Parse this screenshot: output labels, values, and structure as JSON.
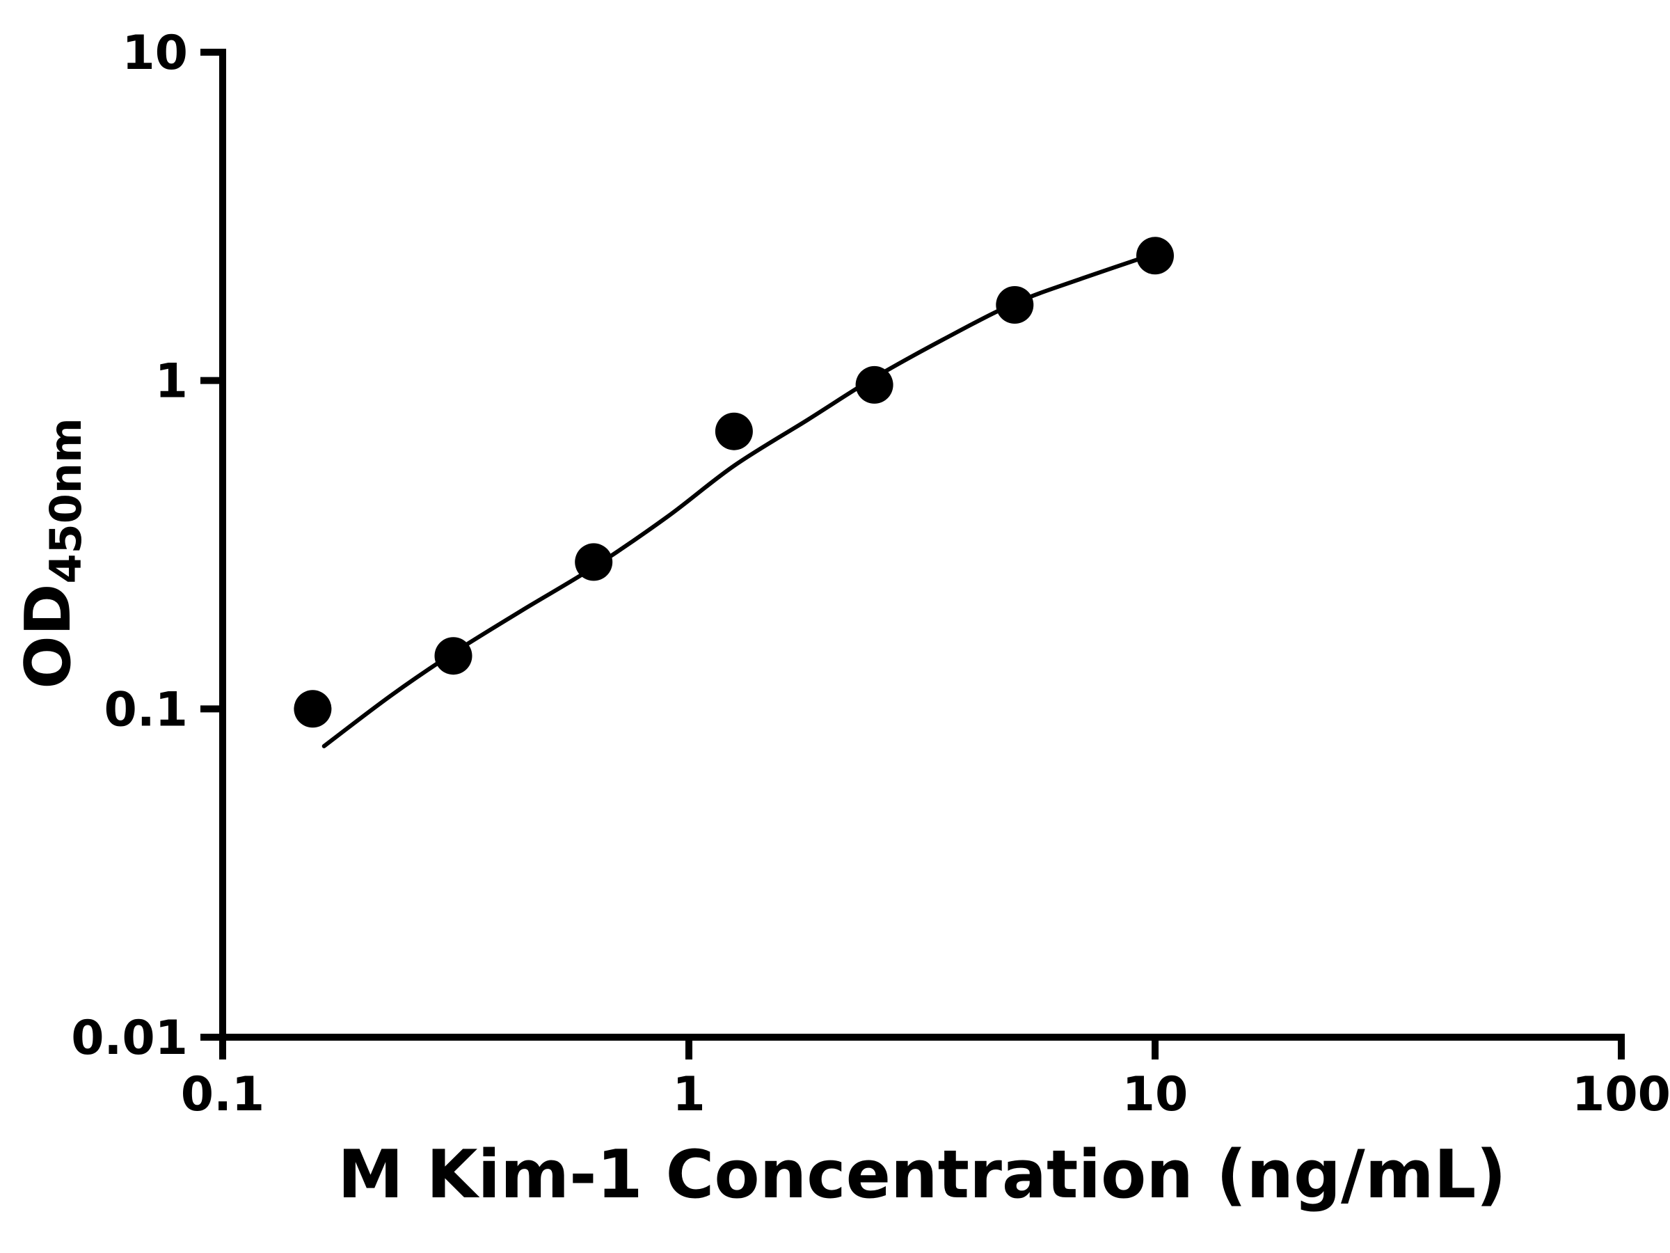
{
  "chart_data": {
    "type": "scatter",
    "title": "",
    "xlabel": "M Kim-1 Concentration (ng/mL)",
    "ylabel_main": "OD",
    "ylabel_sub": "450nm",
    "x_scale": "log",
    "y_scale": "log",
    "xlim": [
      0.1,
      100
    ],
    "ylim": [
      0.01,
      10
    ],
    "x_ticks": [
      0.1,
      1,
      10,
      100
    ],
    "x_tick_labels": [
      "0.1",
      "1",
      "10",
      "100"
    ],
    "y_ticks": [
      0.01,
      0.1,
      1,
      10
    ],
    "y_tick_labels": [
      "0.01",
      "0.1",
      "1",
      "10"
    ],
    "grid": false,
    "legend": false,
    "colors": {
      "foreground": "#000000",
      "background": "#ffffff"
    },
    "series": [
      {
        "name": "standard-data-points",
        "type": "scatter",
        "x": [
          0.156,
          0.3125,
          0.625,
          1.25,
          2.5,
          5,
          10
        ],
        "y": [
          0.1,
          0.145,
          0.28,
          0.7,
          0.97,
          1.7,
          2.4
        ],
        "marker": "circle",
        "marker_color": "#000000"
      },
      {
        "name": "fitted-curve",
        "type": "line",
        "x": [
          0.165,
          0.23,
          0.3125,
          0.44,
          0.625,
          0.9,
          1.25,
          1.8,
          2.5,
          3.5,
          5,
          7,
          10.3
        ],
        "y": [
          0.077,
          0.11,
          0.148,
          0.2,
          0.27,
          0.385,
          0.55,
          0.76,
          1.02,
          1.33,
          1.72,
          2.05,
          2.47
        ],
        "line_color": "#000000"
      }
    ]
  }
}
